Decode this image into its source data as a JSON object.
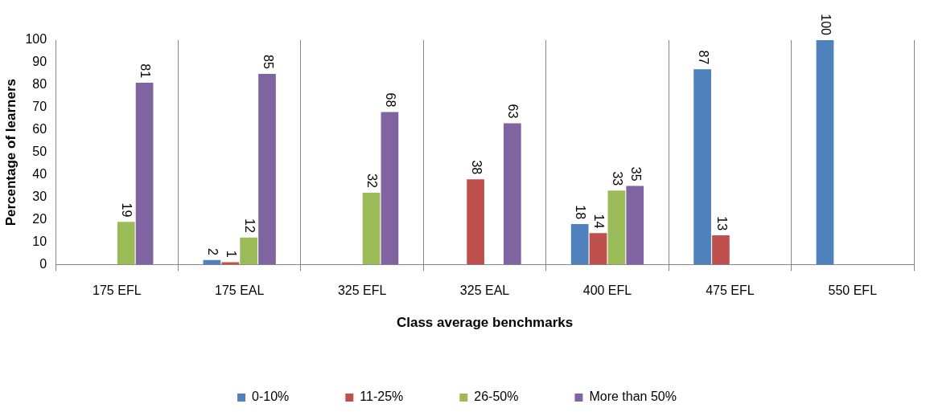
{
  "chart_data": {
    "type": "bar",
    "xlabel": "Class average benchmarks",
    "ylabel": "Percentage of learners",
    "categories": [
      "175 EFL",
      "175 EAL",
      "325 EFL",
      "325 EAL",
      "400 EFL",
      "475 EFL",
      "550 EFL"
    ],
    "series": [
      {
        "name": "0-10%",
        "color": "#4f81bd",
        "values": [
          null,
          2,
          null,
          null,
          18,
          87,
          100
        ]
      },
      {
        "name": "11-25%",
        "color": "#c0504d",
        "values": [
          null,
          1,
          null,
          38,
          14,
          13,
          null
        ]
      },
      {
        "name": "26-50%",
        "color": "#9bbb59",
        "values": [
          19,
          12,
          32,
          null,
          33,
          null,
          null
        ]
      },
      {
        "name": "More than 50%",
        "color": "#8064a2",
        "values": [
          81,
          85,
          68,
          63,
          35,
          null,
          null
        ]
      }
    ],
    "ylim": [
      0,
      100
    ],
    "yticks": [
      0,
      10,
      20,
      30,
      40,
      50,
      60,
      70,
      80,
      90,
      100
    ],
    "grid": "x",
    "legend": "bottom",
    "data_labels": true
  }
}
